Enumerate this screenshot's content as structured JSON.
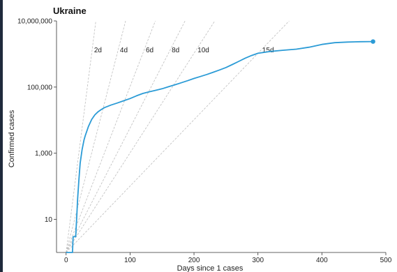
{
  "chart_data": {
    "type": "line",
    "title": "Ukraine",
    "xlabel": "Days since 1 cases",
    "ylabel": "Confirmed cases",
    "y_scale": "log10",
    "xlim": [
      -15,
      500
    ],
    "ylim": [
      1,
      10000000
    ],
    "x_ticks": [
      0,
      100,
      200,
      300,
      400,
      500
    ],
    "x_tick_labels": [
      "0",
      "100",
      "200",
      "300",
      "400",
      "500"
    ],
    "y_ticks": [
      10,
      1000,
      100000,
      10000000
    ],
    "y_tick_labels": [
      "10",
      "1,000",
      "100,000",
      "10,000,000"
    ],
    "grid": false,
    "series": [
      {
        "color": "#2b9bd6",
        "x": [
          0,
          10,
          11,
          15,
          16,
          17,
          18,
          20,
          22,
          25,
          28,
          30,
          35,
          40,
          45,
          50,
          55,
          60,
          70,
          80,
          90,
          100,
          110,
          120,
          130,
          140,
          150,
          160,
          170,
          180,
          190,
          200,
          210,
          220,
          230,
          240,
          250,
          260,
          270,
          280,
          290,
          300,
          320,
          340,
          360,
          380,
          400,
          420,
          440,
          460,
          480
        ],
        "y": [
          1,
          1,
          3,
          3,
          7,
          16,
          40,
          160,
          500,
          1300,
          2500,
          3400,
          6500,
          10500,
          14500,
          18000,
          21000,
          24000,
          28500,
          33000,
          38500,
          45000,
          54500,
          64000,
          72000,
          80000,
          89000,
          102000,
          117000,
          135000,
          156000,
          182000,
          209000,
          240000,
          280000,
          330000,
          390000,
          480000,
          600000,
          750000,
          900000,
          1050000,
          1200000,
          1300000,
          1400000,
          1600000,
          1950000,
          2200000,
          2300000,
          2350000,
          2380000
        ]
      }
    ],
    "end_point": {
      "x": 480,
      "y": 2380000,
      "color": "#2b9bd6"
    },
    "reference_lines": [
      {
        "label": "2d",
        "doubling_days": 2
      },
      {
        "label": "4d",
        "doubling_days": 4
      },
      {
        "label": "6d",
        "doubling_days": 6
      },
      {
        "label": "8d",
        "doubling_days": 8
      },
      {
        "label": "10d",
        "doubling_days": 10
      },
      {
        "label": "15d",
        "doubling_days": 15
      }
    ],
    "colors": {
      "line": "#2b9bd6",
      "reference": "#bdbdbd",
      "axis": "#333333",
      "page_border": "#1f2a3c"
    }
  }
}
